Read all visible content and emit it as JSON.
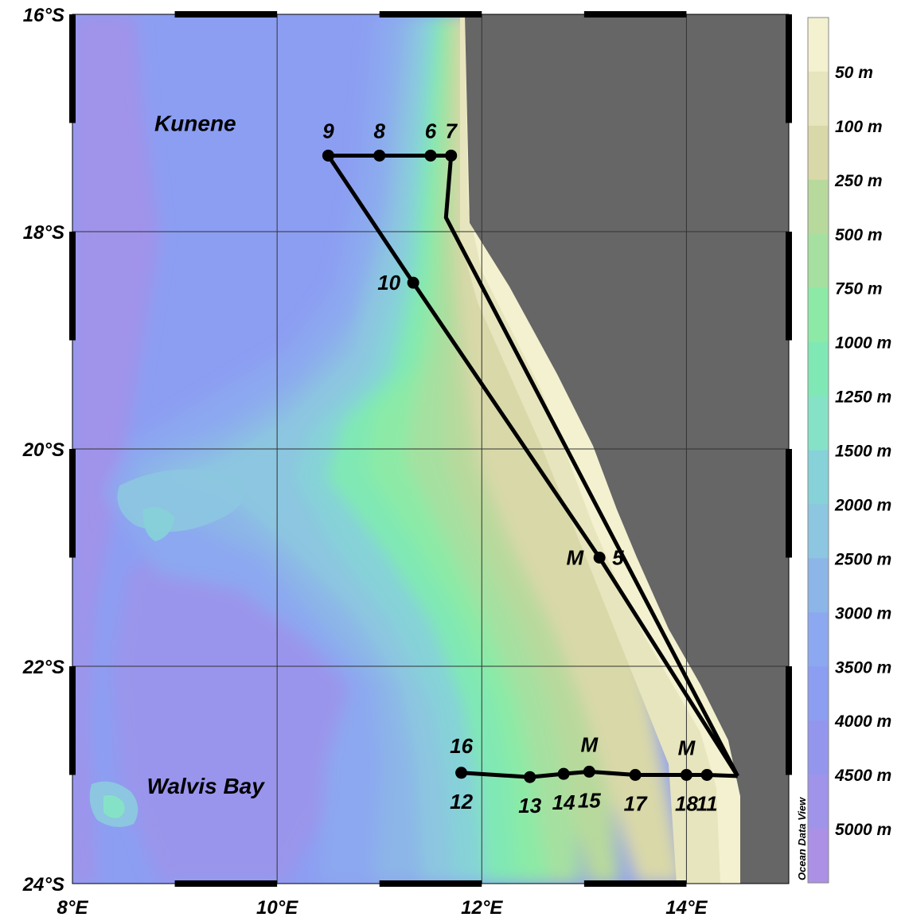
{
  "map": {
    "lon_range": [
      8,
      15
    ],
    "lat_range": [
      -24,
      -16
    ],
    "lon_ticks": [
      {
        "value": 8,
        "label": "8°E"
      },
      {
        "value": 10,
        "label": "10°E"
      },
      {
        "value": 12,
        "label": "12°E"
      },
      {
        "value": 14,
        "label": "14°E"
      }
    ],
    "lat_ticks": [
      {
        "value": -16,
        "label": "16°S"
      },
      {
        "value": -18,
        "label": "18°S"
      },
      {
        "value": -20,
        "label": "20°S"
      },
      {
        "value": -22,
        "label": "22°S"
      },
      {
        "value": -24,
        "label": "24°S"
      }
    ],
    "grid": true,
    "land_color": "#666666",
    "track_color": "#000000"
  },
  "regions": [
    {
      "name": "Kunene",
      "lon": 9.2,
      "lat": -17.0
    },
    {
      "name": "Walvis Bay",
      "lon": 9.3,
      "lat": -23.1
    }
  ],
  "stations": [
    {
      "id": "9",
      "lon": 10.5,
      "lat": -17.3,
      "label_pos": "above"
    },
    {
      "id": "8",
      "lon": 11.0,
      "lat": -17.3,
      "label_pos": "above"
    },
    {
      "id": "6",
      "lon": 11.5,
      "lat": -17.3,
      "label_pos": "above"
    },
    {
      "id": "7",
      "lon": 11.7,
      "lat": -17.3,
      "label_pos": "above"
    },
    {
      "id": "10",
      "lon": 11.33,
      "lat": -18.47,
      "label_pos": "left"
    },
    {
      "id": "5",
      "lon": 13.15,
      "lat": -21.0,
      "label_pos": "right",
      "extra": "M"
    },
    {
      "id": "12",
      "lon": 11.8,
      "lat": -22.98,
      "label_pos": "below",
      "top_label": "16"
    },
    {
      "id": "13",
      "lon": 12.47,
      "lat": -23.02,
      "label_pos": "below"
    },
    {
      "id": "14",
      "lon": 12.8,
      "lat": -22.99,
      "label_pos": "below"
    },
    {
      "id": "15",
      "lon": 13.05,
      "lat": -22.97,
      "label_pos": "below",
      "top_label": "M"
    },
    {
      "id": "17",
      "lon": 13.5,
      "lat": -23.0,
      "label_pos": "below"
    },
    {
      "id": "18",
      "lon": 14.0,
      "lat": -23.0,
      "label_pos": "below",
      "top_label": "M"
    },
    {
      "id": "11",
      "lon": 14.2,
      "lat": -23.0,
      "label_pos": "below"
    }
  ],
  "tracks": [
    [
      [
        10.5,
        -17.3
      ],
      [
        11.7,
        -17.3
      ],
      [
        11.65,
        -17.87
      ],
      [
        14.5,
        -23.01
      ]
    ],
    [
      [
        10.5,
        -17.3
      ],
      [
        11.33,
        -18.47
      ],
      [
        13.15,
        -21.0
      ],
      [
        14.5,
        -23.01
      ]
    ],
    [
      [
        11.8,
        -22.98
      ],
      [
        12.47,
        -23.02
      ],
      [
        12.8,
        -22.99
      ],
      [
        13.05,
        -22.97
      ],
      [
        13.5,
        -23.0
      ],
      [
        14.0,
        -23.0
      ],
      [
        14.2,
        -23.0
      ],
      [
        14.5,
        -23.01
      ]
    ]
  ],
  "legend": {
    "title": "Ocean Data View",
    "levels": [
      {
        "label": "",
        "color": "#f3f1cf"
      },
      {
        "label": "50 m",
        "color": "#e7e5bd"
      },
      {
        "label": "100 m",
        "color": "#d9d8a9"
      },
      {
        "label": "250 m",
        "color": "#b8d99c"
      },
      {
        "label": "500 m",
        "color": "#a6e0a0"
      },
      {
        "label": "750 m",
        "color": "#8ceaa6"
      },
      {
        "label": "1000 m",
        "color": "#80e8b4"
      },
      {
        "label": "1250 m",
        "color": "#86e2c6"
      },
      {
        "label": "1500 m",
        "color": "#86d2d8"
      },
      {
        "label": "2000 m",
        "color": "#8cc6e0"
      },
      {
        "label": "2500 m",
        "color": "#8cb5e8"
      },
      {
        "label": "3000 m",
        "color": "#8ca8f0"
      },
      {
        "label": "3500 m",
        "color": "#8c9ef2"
      },
      {
        "label": "4000 m",
        "color": "#9496ee"
      },
      {
        "label": "4500 m",
        "color": "#a093ea"
      },
      {
        "label": "5000 m",
        "color": "#ac90e6"
      }
    ]
  }
}
